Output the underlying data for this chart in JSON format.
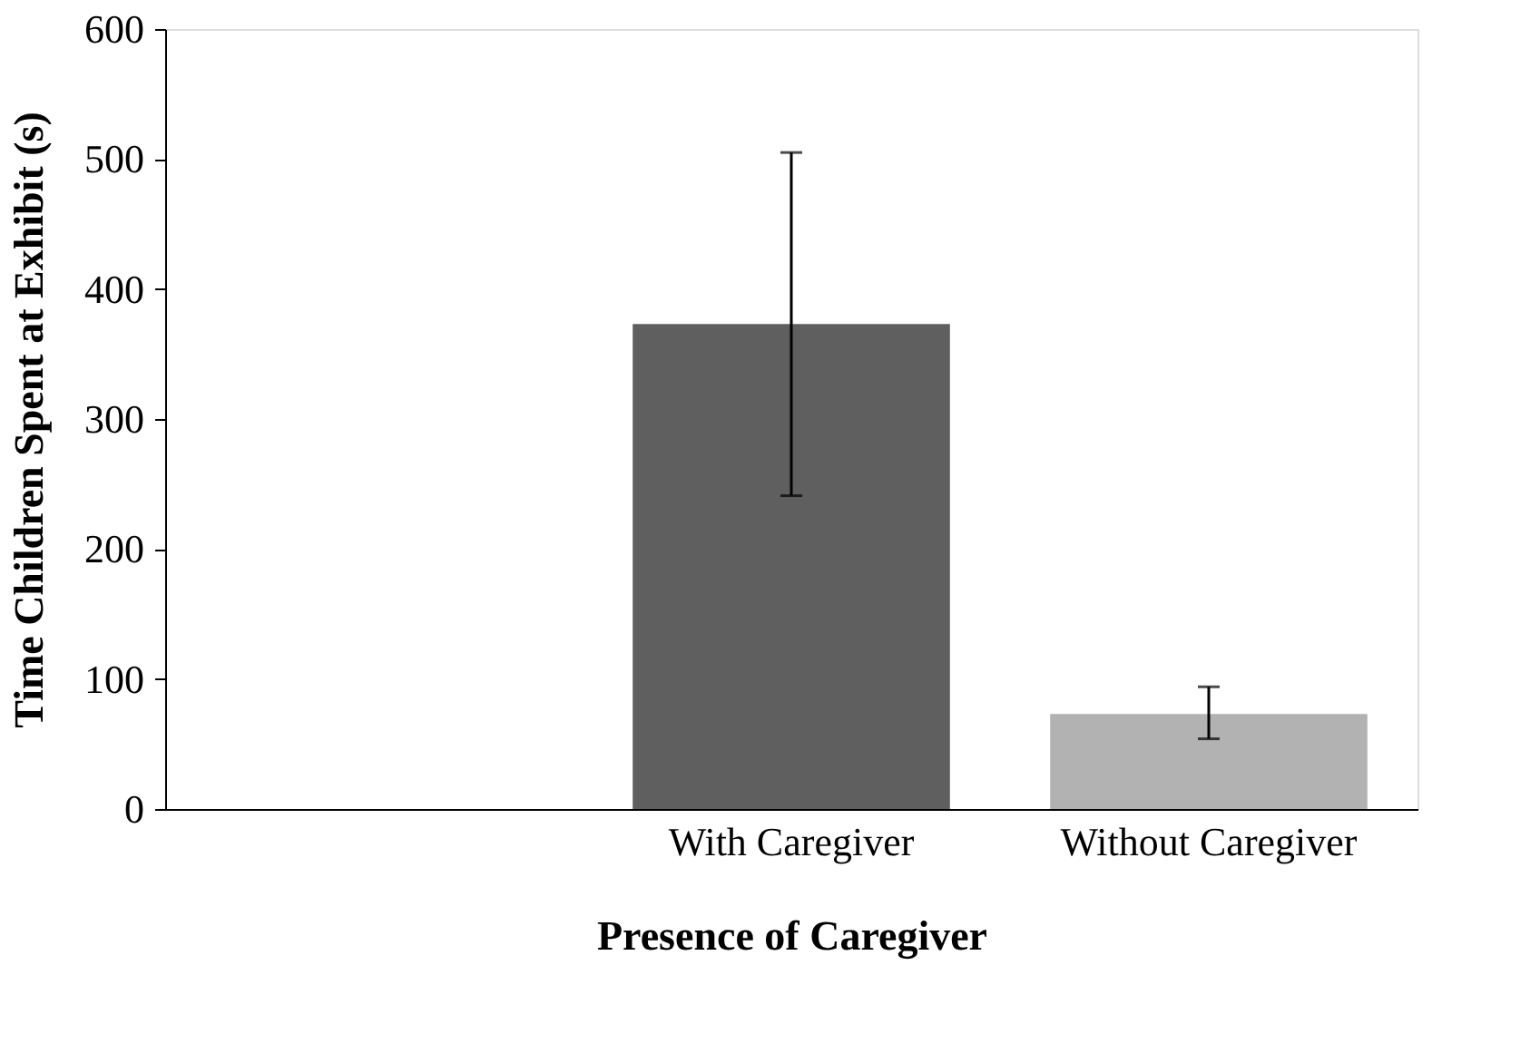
{
  "chart_data": {
    "type": "bar",
    "xlabel": "Presence of Caregiver",
    "ylabel": "Time Children Spent at Exhibit (s)",
    "categories": [
      null,
      "With Caregiver",
      "Without Caregiver"
    ],
    "values": [
      null,
      373,
      73
    ],
    "colors": [
      "#5f5f5f",
      "#5f5f5f",
      "#b2b2b2"
    ],
    "errors": [
      null,
      [
        241,
        505
      ],
      [
        54,
        94
      ]
    ],
    "ylim": [
      0,
      600
    ],
    "yticks": [
      0,
      100,
      200,
      300,
      400,
      500,
      600
    ],
    "grid": false
  }
}
